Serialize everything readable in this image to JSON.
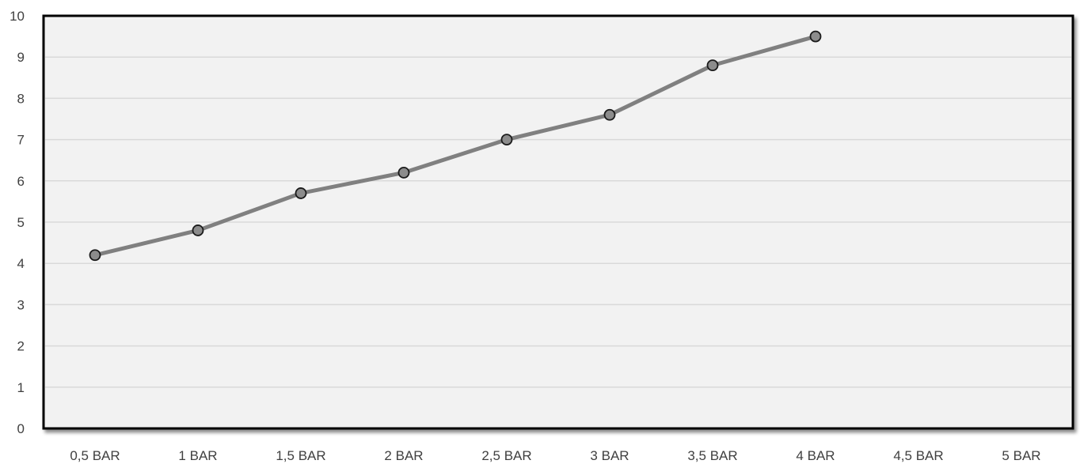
{
  "chart_data": {
    "type": "line",
    "title": "",
    "xlabel": "",
    "ylabel": "",
    "categories": [
      "0,5 BAR",
      "1 BAR",
      "1,5 BAR",
      "2 BAR",
      "2,5 BAR",
      "3 BAR",
      "3,5 BAR",
      "4 BAR",
      "4,5 BAR",
      "5 BAR"
    ],
    "series": [
      {
        "values": [
          4.2,
          4.8,
          5.7,
          6.2,
          7.0,
          7.6,
          8.8,
          9.5,
          null,
          null
        ]
      }
    ],
    "ylim": [
      0,
      10
    ],
    "yticks": [
      0,
      1,
      2,
      3,
      4,
      5,
      6,
      7,
      8,
      9,
      10
    ],
    "grid": true,
    "legend": "none",
    "colors": {
      "line": "#808080",
      "marker_fill": "#8c8c8c",
      "marker_stroke": "#1a1a1a",
      "plot_background": "#f2f2f2",
      "gridline": "#d9d9d9",
      "frame": "#000000",
      "tick_text": "#404040"
    }
  }
}
